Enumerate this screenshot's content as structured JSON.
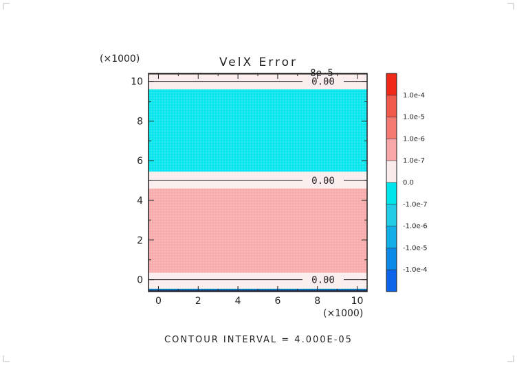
{
  "chart_data": {
    "type": "heatmap",
    "title": "VelX Error",
    "x_multiplier": "(×1000)",
    "y_multiplier": "(×1000)",
    "xlim": [
      -0.5,
      10.5
    ],
    "ylim": [
      -0.6,
      10.4
    ],
    "x_ticks": [
      "0",
      "2",
      "4",
      "6",
      "8",
      "10"
    ],
    "y_ticks": [
      "0",
      "2",
      "4",
      "6",
      "8",
      "10"
    ],
    "bands": [
      {
        "y0": -0.6,
        "y1": -0.45,
        "color": "#00a8e8"
      },
      {
        "y0": -0.45,
        "y1": 0.35,
        "color": "#fbecec"
      },
      {
        "y0": 0.35,
        "y1": 4.6,
        "color": "#f7a9a9"
      },
      {
        "y0": 4.6,
        "y1": 5.45,
        "color": "#fbecec"
      },
      {
        "y0": 5.45,
        "y1": 9.6,
        "color": "#00e4ec"
      },
      {
        "y0": 9.6,
        "y1": 10.4,
        "color": "#fbecec"
      }
    ],
    "contours": [
      {
        "y": 10.0,
        "label": "0.00"
      },
      {
        "y": 5.0,
        "label": "0.00"
      },
      {
        "y": 0.0,
        "label": "0.00"
      }
    ],
    "top_contour_label": "8e-5",
    "colorbar": {
      "colors": [
        "#0e64e8",
        "#0a8ae8",
        "#12aee8",
        "#22cce6",
        "#00e4ec",
        "#fbecec",
        "#f8a8a8",
        "#f77a72",
        "#f25a4c",
        "#f02a18"
      ],
      "labels": [
        "-1.0e-4",
        "-1.0e-5",
        "-1.0e-6",
        "-1.0e-7",
        "0.0",
        "1.0e-7",
        "1.0e-6",
        "1.0e-5",
        "1.0e-4"
      ]
    },
    "footer": "CONTOUR INTERVAL = 4.000E-05"
  }
}
